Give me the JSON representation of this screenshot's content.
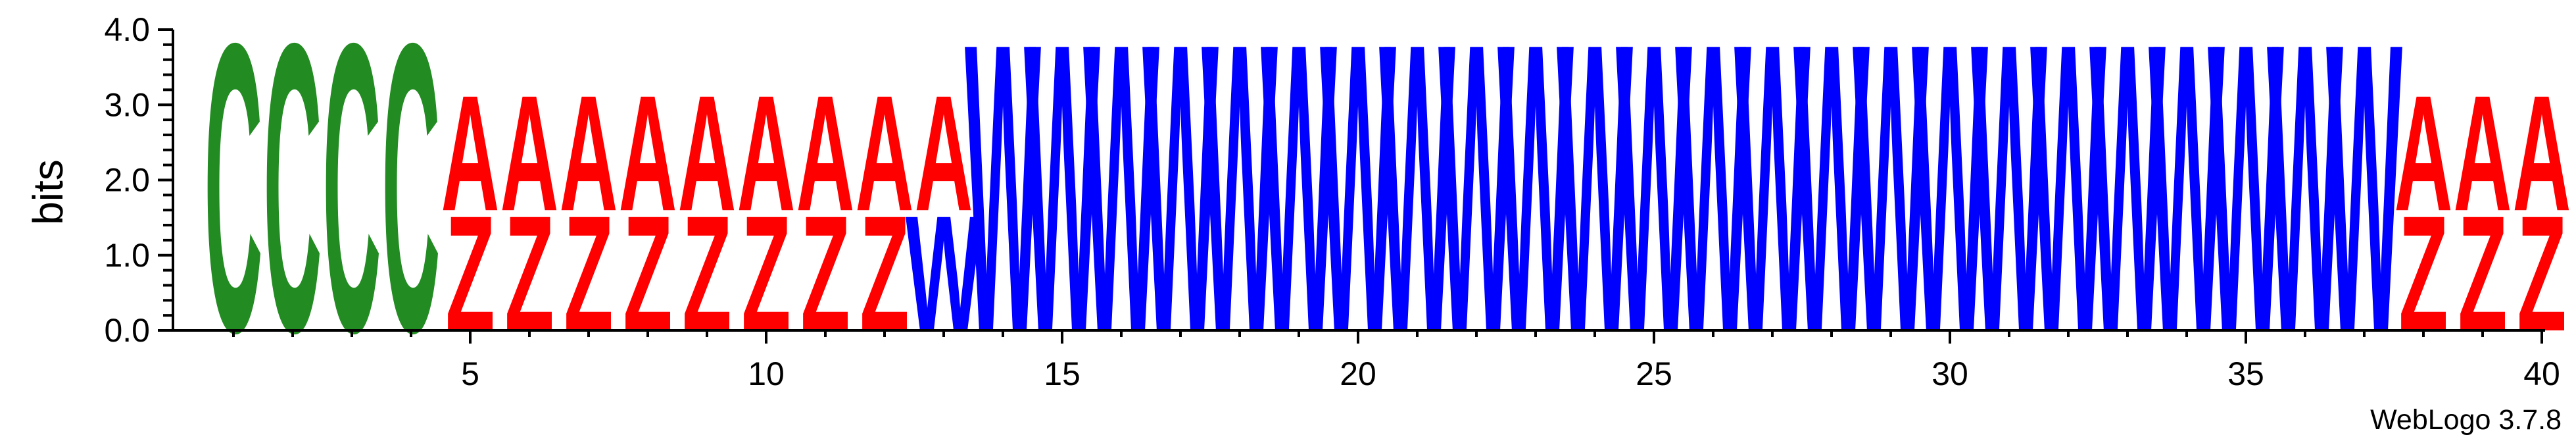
{
  "chart_data": {
    "type": "sequence-logo",
    "ylabel": "bits",
    "ylim": [
      0,
      4.0
    ],
    "y_ticks": [
      "0.0",
      "1.0",
      "2.0",
      "3.0",
      "4.0"
    ],
    "x_ticks": [
      5,
      10,
      15,
      20,
      25,
      30,
      35,
      40
    ],
    "x_range": [
      1,
      40
    ],
    "credit": "WebLogo 3.7.8",
    "colors": {
      "C": "#228b22",
      "A": "#ff0000",
      "Z": "#ff0000",
      "W": "#0000ff"
    },
    "positions": [
      {
        "pos": 1,
        "letters": [
          {
            "char": "C",
            "bits": 4.0
          }
        ]
      },
      {
        "pos": 2,
        "letters": [
          {
            "char": "C",
            "bits": 4.0
          }
        ]
      },
      {
        "pos": 3,
        "letters": [
          {
            "char": "C",
            "bits": 4.0
          }
        ]
      },
      {
        "pos": 4,
        "letters": [
          {
            "char": "C",
            "bits": 4.0
          }
        ]
      },
      {
        "pos": 5,
        "letters": [
          {
            "char": "Z",
            "bits": 1.6
          },
          {
            "char": "A",
            "bits": 1.6
          }
        ]
      },
      {
        "pos": 6,
        "letters": [
          {
            "char": "Z",
            "bits": 1.6
          },
          {
            "char": "A",
            "bits": 1.6
          }
        ]
      },
      {
        "pos": 7,
        "letters": [
          {
            "char": "Z",
            "bits": 1.6
          },
          {
            "char": "A",
            "bits": 1.6
          }
        ]
      },
      {
        "pos": 8,
        "letters": [
          {
            "char": "Z",
            "bits": 1.6
          },
          {
            "char": "A",
            "bits": 1.6
          }
        ]
      },
      {
        "pos": 9,
        "letters": [
          {
            "char": "Z",
            "bits": 1.6
          },
          {
            "char": "A",
            "bits": 1.6
          }
        ]
      },
      {
        "pos": 10,
        "letters": [
          {
            "char": "Z",
            "bits": 1.6
          },
          {
            "char": "A",
            "bits": 1.6
          }
        ]
      },
      {
        "pos": 11,
        "letters": [
          {
            "char": "Z",
            "bits": 1.6
          },
          {
            "char": "A",
            "bits": 1.6
          }
        ]
      },
      {
        "pos": 12,
        "letters": [
          {
            "char": "Z",
            "bits": 1.6
          },
          {
            "char": "A",
            "bits": 1.6
          }
        ]
      },
      {
        "pos": 13,
        "letters": [
          {
            "char": "W",
            "bits": 1.6
          },
          {
            "char": "A",
            "bits": 1.6
          }
        ]
      },
      {
        "pos": 14,
        "letters": [
          {
            "char": "W",
            "bits": 4.0
          }
        ]
      },
      {
        "pos": 15,
        "letters": [
          {
            "char": "W",
            "bits": 4.0
          }
        ]
      },
      {
        "pos": 16,
        "letters": [
          {
            "char": "W",
            "bits": 4.0
          }
        ]
      },
      {
        "pos": 17,
        "letters": [
          {
            "char": "W",
            "bits": 4.0
          }
        ]
      },
      {
        "pos": 18,
        "letters": [
          {
            "char": "W",
            "bits": 4.0
          }
        ]
      },
      {
        "pos": 19,
        "letters": [
          {
            "char": "W",
            "bits": 4.0
          }
        ]
      },
      {
        "pos": 20,
        "letters": [
          {
            "char": "W",
            "bits": 4.0
          }
        ]
      },
      {
        "pos": 21,
        "letters": [
          {
            "char": "W",
            "bits": 4.0
          }
        ]
      },
      {
        "pos": 22,
        "letters": [
          {
            "char": "W",
            "bits": 4.0
          }
        ]
      },
      {
        "pos": 23,
        "letters": [
          {
            "char": "W",
            "bits": 4.0
          }
        ]
      },
      {
        "pos": 24,
        "letters": [
          {
            "char": "W",
            "bits": 4.0
          }
        ]
      },
      {
        "pos": 25,
        "letters": [
          {
            "char": "W",
            "bits": 4.0
          }
        ]
      },
      {
        "pos": 26,
        "letters": [
          {
            "char": "W",
            "bits": 4.0
          }
        ]
      },
      {
        "pos": 27,
        "letters": [
          {
            "char": "W",
            "bits": 4.0
          }
        ]
      },
      {
        "pos": 28,
        "letters": [
          {
            "char": "W",
            "bits": 4.0
          }
        ]
      },
      {
        "pos": 29,
        "letters": [
          {
            "char": "W",
            "bits": 4.0
          }
        ]
      },
      {
        "pos": 30,
        "letters": [
          {
            "char": "W",
            "bits": 4.0
          }
        ]
      },
      {
        "pos": 31,
        "letters": [
          {
            "char": "W",
            "bits": 4.0
          }
        ]
      },
      {
        "pos": 32,
        "letters": [
          {
            "char": "W",
            "bits": 4.0
          }
        ]
      },
      {
        "pos": 33,
        "letters": [
          {
            "char": "W",
            "bits": 4.0
          }
        ]
      },
      {
        "pos": 34,
        "letters": [
          {
            "char": "W",
            "bits": 4.0
          }
        ]
      },
      {
        "pos": 35,
        "letters": [
          {
            "char": "W",
            "bits": 4.0
          }
        ]
      },
      {
        "pos": 36,
        "letters": [
          {
            "char": "W",
            "bits": 4.0
          }
        ]
      },
      {
        "pos": 37,
        "letters": [
          {
            "char": "W",
            "bits": 4.0
          }
        ]
      },
      {
        "pos": 38,
        "letters": [
          {
            "char": "Z",
            "bits": 1.6
          },
          {
            "char": "A",
            "bits": 1.6
          }
        ]
      },
      {
        "pos": 39,
        "letters": [
          {
            "char": "Z",
            "bits": 1.6
          },
          {
            "char": "A",
            "bits": 1.6
          }
        ]
      },
      {
        "pos": 40,
        "letters": [
          {
            "char": "Z",
            "bits": 1.6
          },
          {
            "char": "A",
            "bits": 1.6
          }
        ]
      }
    ]
  }
}
